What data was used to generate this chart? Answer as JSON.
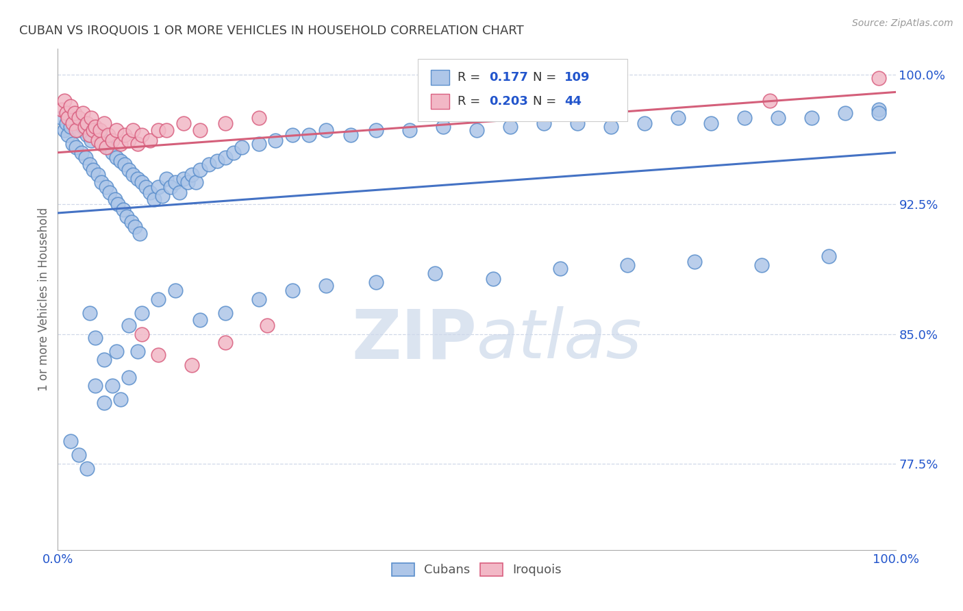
{
  "title": "CUBAN VS IROQUOIS 1 OR MORE VEHICLES IN HOUSEHOLD CORRELATION CHART",
  "source_text": "Source: ZipAtlas.com",
  "ylabel": "1 or more Vehicles in Household",
  "xmin": 0.0,
  "xmax": 1.0,
  "ymin": 0.725,
  "ymax": 1.015,
  "yticks": [
    0.775,
    0.85,
    0.925,
    1.0
  ],
  "ytick_labels": [
    "77.5%",
    "85.0%",
    "92.5%",
    "100.0%"
  ],
  "xtick_labels": [
    "0.0%",
    "100.0%"
  ],
  "xticks": [
    0.0,
    1.0
  ],
  "blue_R": 0.177,
  "blue_N": 109,
  "pink_R": 0.203,
  "pink_N": 44,
  "blue_color": "#aec6e8",
  "pink_color": "#f2b8c6",
  "blue_edge_color": "#5b8fcc",
  "pink_edge_color": "#d96080",
  "blue_line_color": "#4472c4",
  "pink_line_color": "#d45f7a",
  "legend_text_color": "#2255cc",
  "watermark_color": "#cdd9ea",
  "title_color": "#404040",
  "blue_scatter_x": [
    0.005,
    0.008,
    0.01,
    0.012,
    0.015,
    0.018,
    0.02,
    0.022,
    0.025,
    0.028,
    0.03,
    0.033,
    0.035,
    0.038,
    0.04,
    0.042,
    0.045,
    0.048,
    0.05,
    0.052,
    0.055,
    0.058,
    0.06,
    0.062,
    0.065,
    0.068,
    0.07,
    0.072,
    0.075,
    0.078,
    0.08,
    0.082,
    0.085,
    0.088,
    0.09,
    0.092,
    0.095,
    0.098,
    0.1,
    0.105,
    0.11,
    0.115,
    0.12,
    0.125,
    0.13,
    0.135,
    0.14,
    0.145,
    0.15,
    0.155,
    0.16,
    0.165,
    0.17,
    0.18,
    0.19,
    0.2,
    0.21,
    0.22,
    0.24,
    0.26,
    0.28,
    0.3,
    0.32,
    0.35,
    0.38,
    0.42,
    0.46,
    0.5,
    0.54,
    0.58,
    0.62,
    0.66,
    0.7,
    0.74,
    0.78,
    0.82,
    0.86,
    0.9,
    0.94,
    0.98,
    0.038,
    0.045,
    0.055,
    0.065,
    0.075,
    0.085,
    0.095,
    0.015,
    0.025,
    0.035,
    0.045,
    0.055,
    0.07,
    0.085,
    0.1,
    0.12,
    0.14,
    0.17,
    0.2,
    0.24,
    0.28,
    0.32,
    0.38,
    0.45,
    0.52,
    0.6,
    0.68,
    0.76,
    0.84,
    0.92,
    0.98
  ],
  "blue_scatter_y": [
    0.975,
    0.968,
    0.972,
    0.965,
    0.97,
    0.96,
    0.975,
    0.958,
    0.968,
    0.955,
    0.97,
    0.952,
    0.965,
    0.948,
    0.962,
    0.945,
    0.968,
    0.942,
    0.965,
    0.938,
    0.96,
    0.935,
    0.958,
    0.932,
    0.955,
    0.928,
    0.952,
    0.925,
    0.95,
    0.922,
    0.948,
    0.918,
    0.945,
    0.915,
    0.942,
    0.912,
    0.94,
    0.908,
    0.938,
    0.935,
    0.932,
    0.928,
    0.935,
    0.93,
    0.94,
    0.935,
    0.938,
    0.932,
    0.94,
    0.938,
    0.942,
    0.938,
    0.945,
    0.948,
    0.95,
    0.952,
    0.955,
    0.958,
    0.96,
    0.962,
    0.965,
    0.965,
    0.968,
    0.965,
    0.968,
    0.968,
    0.97,
    0.968,
    0.97,
    0.972,
    0.972,
    0.97,
    0.972,
    0.975,
    0.972,
    0.975,
    0.975,
    0.975,
    0.978,
    0.98,
    0.862,
    0.848,
    0.835,
    0.82,
    0.812,
    0.825,
    0.84,
    0.788,
    0.78,
    0.772,
    0.82,
    0.81,
    0.84,
    0.855,
    0.862,
    0.87,
    0.875,
    0.858,
    0.862,
    0.87,
    0.875,
    0.878,
    0.88,
    0.885,
    0.882,
    0.888,
    0.89,
    0.892,
    0.89,
    0.895,
    0.978
  ],
  "pink_scatter_x": [
    0.005,
    0.008,
    0.01,
    0.012,
    0.015,
    0.018,
    0.02,
    0.022,
    0.025,
    0.03,
    0.032,
    0.035,
    0.038,
    0.04,
    0.042,
    0.045,
    0.048,
    0.05,
    0.052,
    0.055,
    0.058,
    0.06,
    0.065,
    0.07,
    0.075,
    0.08,
    0.085,
    0.09,
    0.095,
    0.1,
    0.11,
    0.12,
    0.13,
    0.15,
    0.17,
    0.2,
    0.24,
    0.1,
    0.12,
    0.16,
    0.2,
    0.25,
    0.85,
    0.98
  ],
  "pink_scatter_y": [
    0.98,
    0.985,
    0.978,
    0.975,
    0.982,
    0.972,
    0.978,
    0.968,
    0.975,
    0.978,
    0.97,
    0.972,
    0.965,
    0.975,
    0.968,
    0.97,
    0.962,
    0.968,
    0.96,
    0.972,
    0.958,
    0.965,
    0.962,
    0.968,
    0.96,
    0.965,
    0.962,
    0.968,
    0.96,
    0.965,
    0.962,
    0.968,
    0.968,
    0.972,
    0.968,
    0.972,
    0.975,
    0.85,
    0.838,
    0.832,
    0.845,
    0.855,
    0.985,
    0.998
  ],
  "grid_color": "#d0d8e8",
  "background_color": "#ffffff"
}
